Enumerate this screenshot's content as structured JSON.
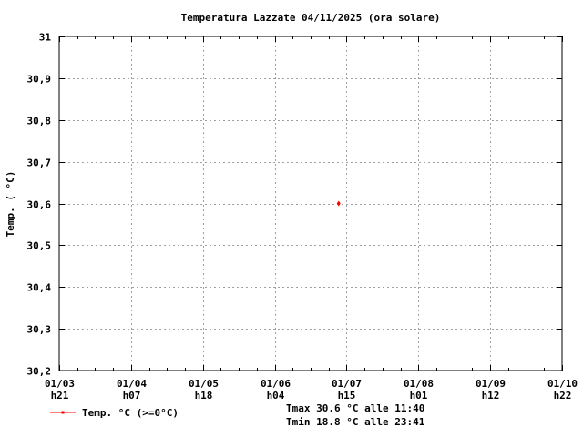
{
  "chart_data": {
    "type": "line",
    "title": "Temperatura Lazzate 04/11/2025 (ora solare)",
    "xlabel": "",
    "ylabel": "Temp. ( °C)",
    "ylim": [
      30.2,
      31
    ],
    "yticks": [
      "30,2",
      "30,3",
      "30,4",
      "30,5",
      "30,6",
      "30,7",
      "30,8",
      "30,9",
      "31"
    ],
    "xticks": [
      {
        "date": "01/03",
        "hour": "h21"
      },
      {
        "date": "01/04",
        "hour": "h07"
      },
      {
        "date": "01/05",
        "hour": "h18"
      },
      {
        "date": "01/06",
        "hour": "h04"
      },
      {
        "date": "01/07",
        "hour": "h15"
      },
      {
        "date": "01/08",
        "hour": "h01"
      },
      {
        "date": "01/09",
        "hour": "h12"
      },
      {
        "date": "01/10",
        "hour": "h22"
      }
    ],
    "xlim_index": [
      0,
      7
    ],
    "grid": true,
    "legend_position": "bottom-left",
    "series": [
      {
        "name": "Temp. °C (>=0°C)",
        "color": "#ff0000",
        "points": [
          {
            "x_index": 3.89,
            "y": 30.6
          }
        ]
      }
    ],
    "annotations": [
      "Tmax 30.6 °C alle 11:40",
      "Tmin 18.8 °C alle 23:41"
    ]
  }
}
